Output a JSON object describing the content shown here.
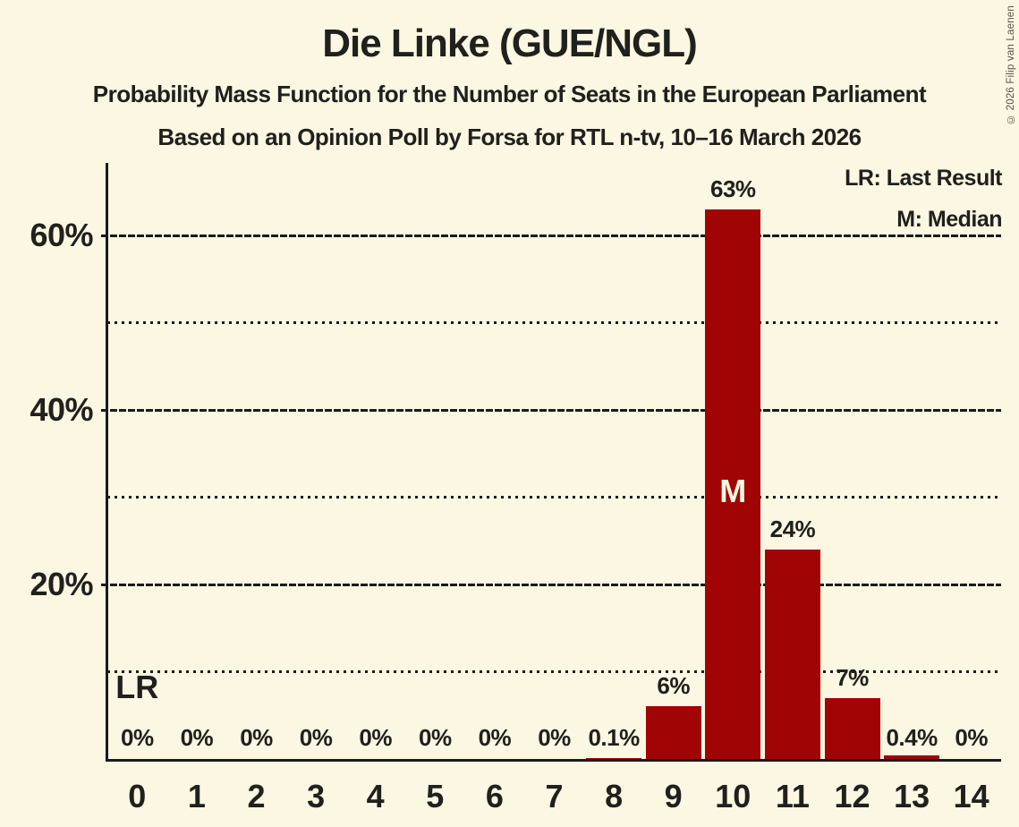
{
  "copyright": "© 2026 Filip van Laenen",
  "colors": {
    "background": "#FCF7E2",
    "bar": "#A00404",
    "text": "#20201D",
    "median_label_on_bar": "#FCF7E2",
    "gridline": "#1B1B18"
  },
  "chart_data": {
    "type": "bar",
    "title": "Die Linke (GUE/NGL)",
    "subtitle": "Probability Mass Function for the Number of Seats in the European Parliament",
    "source_line": "Based on an Opinion Poll by Forsa for RTL n-tv, 10–16 March 2026",
    "categories": [
      "0",
      "1",
      "2",
      "3",
      "4",
      "5",
      "6",
      "7",
      "8",
      "9",
      "10",
      "11",
      "12",
      "13",
      "14"
    ],
    "values": [
      0,
      0,
      0,
      0,
      0,
      0,
      0,
      0,
      0.1,
      6,
      63,
      24,
      7,
      0.4,
      0
    ],
    "value_labels": [
      "0%",
      "0%",
      "0%",
      "0%",
      "0%",
      "0%",
      "0%",
      "0%",
      "0.1%",
      "6%",
      "63%",
      "24%",
      "7%",
      "0.4%",
      "0%"
    ],
    "ylim": [
      0,
      68
    ],
    "y_solid_gridlines": [
      20,
      40,
      60
    ],
    "y_dotted_gridlines": [
      10,
      30,
      50
    ],
    "y_tick_labels": [
      "20%",
      "40%",
      "60%"
    ],
    "grid": "horizontal",
    "legend_position": "top-right",
    "legend": [
      "LR: Last Result",
      "M: Median"
    ],
    "annotations": {
      "last_result_label": "LR",
      "last_result_seat": 0,
      "median_label": "M",
      "median_seat": 10
    }
  }
}
